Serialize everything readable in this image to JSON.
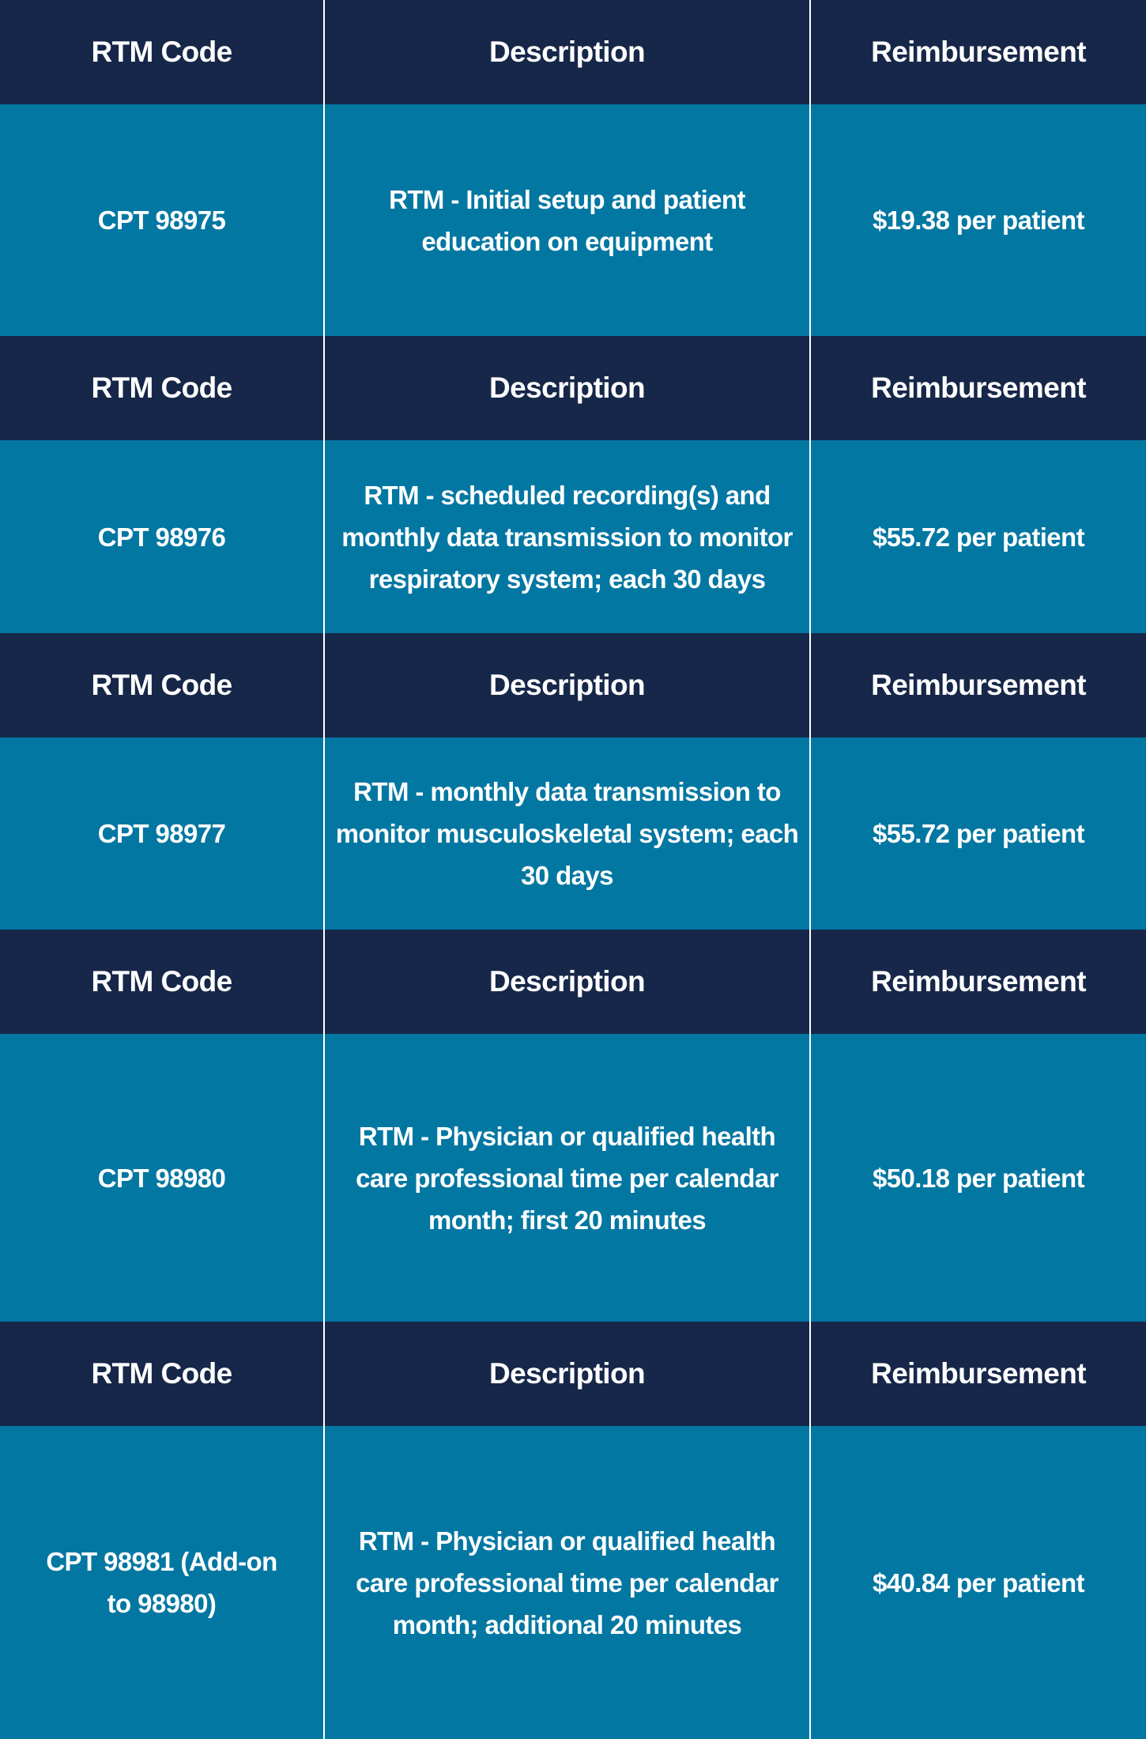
{
  "colors": {
    "header_bg": "#172749",
    "row_bg": "#0277a2",
    "text": "#ffffff",
    "divider": "#ffffff"
  },
  "headers": {
    "code": "RTM Code",
    "description": "Description",
    "reimbursement": "Reimbursement"
  },
  "rows": [
    {
      "code": "CPT 98975",
      "description": "RTM - Initial setup and patient education on equipment",
      "reimbursement": "$19.38 per patient"
    },
    {
      "code": "CPT 98976",
      "description": "RTM - scheduled recording(s) and monthly data transmission to monitor respiratory system; each 30 days",
      "reimbursement": "$55.72 per patient"
    },
    {
      "code": "CPT 98977",
      "description": "RTM - monthly data transmission to monitor musculoskeletal system; each 30 days",
      "reimbursement": "$55.72 per patient"
    },
    {
      "code": "CPT 98980",
      "description": "RTM - Physician or qualified health care professional time per calendar month; first 20 minutes",
      "reimbursement": "$50.18 per patient"
    },
    {
      "code": "CPT 98981 (Add-on to 98980)",
      "description": "RTM - Physician or qualified health care professional time per calendar month; additional 20 minutes",
      "reimbursement": "$40.84 per patient"
    }
  ]
}
